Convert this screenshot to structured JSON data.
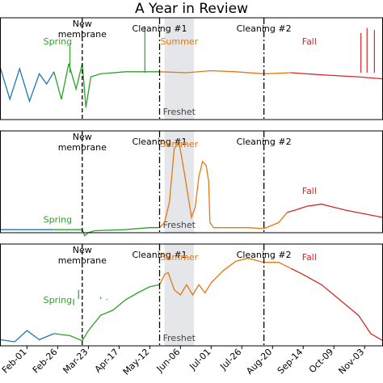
{
  "figure": {
    "title": "A Year in Review",
    "colors": {
      "winter": "#1f77b4",
      "spring": "#2ca02c",
      "summer": "#e6770f",
      "fall": "#d62728",
      "freshet_band": "#e4e6ea",
      "axis": "#000000"
    }
  },
  "chart_data": [
    {
      "type": "line",
      "panel": 1,
      "x_ticks": [
        "Feb-01",
        "Feb-26",
        "Mar-23",
        "Apr-17",
        "May-12",
        "Jun-06",
        "Jul-01",
        "Jul-26",
        "Aug-20",
        "Sep-14",
        "Oct-09",
        "Nov-03"
      ],
      "x_tick_days": [
        0,
        25,
        50,
        75,
        100,
        125,
        150,
        175,
        200,
        225,
        250,
        275
      ],
      "xlim": [
        -22,
        290
      ],
      "ylim": [
        0,
        1
      ],
      "shaded_region": {
        "label": "Freshet",
        "x": [
          112,
          136
        ]
      },
      "events": [
        {
          "label": "New membrane",
          "x": 45
        },
        {
          "label": "Cleaning #1",
          "x": 108
        },
        {
          "label": "Cleaning #2",
          "x": 193
        }
      ],
      "season_labels": [
        {
          "label": "Spring",
          "x": 25,
          "y": 0.74,
          "color": "#2ca02c"
        },
        {
          "label": "Summer",
          "x": 124,
          "y": 0.74,
          "color": "#e6770f"
        },
        {
          "label": "Fall",
          "x": 230,
          "y": 0.74,
          "color": "#d62728"
        }
      ],
      "series": [
        {
          "color": "#1f77b4",
          "points": [
            [
              -22,
              0.52
            ],
            [
              -14,
              0.2
            ],
            [
              -6,
              0.5
            ],
            [
              2,
              0.18
            ],
            [
              10,
              0.45
            ],
            [
              16,
              0.35
            ],
            [
              22,
              0.47
            ]
          ]
        },
        {
          "color": "#2ca02c",
          "points": [
            [
              22,
              0.47
            ],
            [
              28,
              0.2
            ],
            [
              34,
              0.55
            ],
            [
              40,
              0.3
            ],
            [
              45,
              0.55
            ],
            [
              48,
              0.12
            ],
            [
              52,
              0.42
            ],
            [
              60,
              0.45
            ],
            [
              80,
              0.47
            ],
            [
              108,
              0.47
            ]
          ]
        },
        {
          "color": "#e6770f",
          "points": [
            [
              108,
              0.47
            ],
            [
              130,
              0.46
            ],
            [
              150,
              0.48
            ],
            [
              170,
              0.47
            ],
            [
              193,
              0.45
            ],
            [
              215,
              0.46
            ]
          ]
        },
        {
          "color": "#d62728",
          "points": [
            [
              215,
              0.46
            ],
            [
              240,
              0.44
            ],
            [
              270,
              0.42
            ],
            [
              290,
              0.4
            ]
          ]
        }
      ],
      "spikes": [
        {
          "x": 35,
          "y": 0.72,
          "color": "#2ca02c"
        },
        {
          "x": 96,
          "y": 0.92,
          "color": "#2ca02c"
        },
        {
          "x": 272,
          "y": 0.85,
          "color": "#d62728"
        },
        {
          "x": 277,
          "y": 0.9,
          "color": "#d62728"
        },
        {
          "x": 283,
          "y": 0.88,
          "color": "#d62728"
        }
      ]
    },
    {
      "type": "line",
      "panel": 2,
      "xlim": [
        -22,
        290
      ],
      "ylim": [
        0,
        1
      ],
      "shaded_region": {
        "label": "Freshet",
        "x": [
          112,
          136
        ]
      },
      "events": [
        {
          "label": "New membrane",
          "x": 45
        },
        {
          "label": "Cleaning #1",
          "x": 108
        },
        {
          "label": "Cleaning #2",
          "x": 193
        }
      ],
      "season_labels": [
        {
          "label": "Spring",
          "x": 25,
          "y": 0.1,
          "color": "#2ca02c"
        },
        {
          "label": "Summer",
          "x": 124,
          "y": 0.84,
          "color": "#e6770f"
        },
        {
          "label": "Fall",
          "x": 230,
          "y": 0.38,
          "color": "#d62728"
        }
      ],
      "series": [
        {
          "color": "#1f77b4",
          "points": [
            [
              -22,
              0.03
            ],
            [
              22,
              0.03
            ]
          ]
        },
        {
          "color": "#2ca02c",
          "points": [
            [
              22,
              0.03
            ],
            [
              45,
              0.03
            ],
            [
              47,
              -0.03
            ],
            [
              50,
              0.0
            ],
            [
              55,
              0.02
            ],
            [
              80,
              0.03
            ],
            [
              100,
              0.05
            ],
            [
              108,
              0.05
            ]
          ]
        },
        {
          "color": "#e6770f",
          "points": [
            [
              108,
              0.05
            ],
            [
              112,
              0.1
            ],
            [
              116,
              0.3
            ],
            [
              120,
              0.83
            ],
            [
              124,
              0.88
            ],
            [
              128,
              0.6
            ],
            [
              132,
              0.3
            ],
            [
              134,
              0.15
            ],
            [
              137,
              0.25
            ],
            [
              140,
              0.55
            ],
            [
              143,
              0.7
            ],
            [
              146,
              0.66
            ],
            [
              148,
              0.5
            ],
            [
              149,
              0.1
            ],
            [
              152,
              0.05
            ],
            [
              180,
              0.05
            ],
            [
              193,
              0.04
            ],
            [
              205,
              0.1
            ],
            [
              212,
              0.2
            ]
          ]
        },
        {
          "color": "#d62728",
          "points": [
            [
              212,
              0.2
            ],
            [
              218,
              0.22
            ],
            [
              228,
              0.26
            ],
            [
              240,
              0.28
            ],
            [
              260,
              0.22
            ],
            [
              290,
              0.15
            ]
          ]
        }
      ],
      "spikes": []
    },
    {
      "type": "line",
      "panel": 3,
      "xlim": [
        -22,
        290
      ],
      "ylim": [
        0,
        1
      ],
      "shaded_region": {
        "label": "Freshet",
        "x": [
          112,
          136
        ]
      },
      "events": [
        {
          "label": "New membrane",
          "x": 45
        },
        {
          "label": "Cleaning #1",
          "x": 108
        },
        {
          "label": "Cleaning #2",
          "x": 193
        }
      ],
      "season_labels": [
        {
          "label": "Spring",
          "x": 25,
          "y": 0.42,
          "color": "#2ca02c"
        },
        {
          "label": "Summer",
          "x": 124,
          "y": 0.84,
          "color": "#e6770f"
        },
        {
          "label": "Fall",
          "x": 230,
          "y": 0.84,
          "color": "#d62728"
        }
      ],
      "series": [
        {
          "color": "#1f77b4",
          "points": [
            [
              -22,
              0.06
            ],
            [
              -10,
              0.04
            ],
            [
              0,
              0.15
            ],
            [
              10,
              0.06
            ],
            [
              22,
              0.12
            ]
          ]
        },
        {
          "color": "#2ca02c",
          "points": [
            [
              22,
              0.12
            ],
            [
              35,
              0.1
            ],
            [
              45,
              0.05
            ],
            [
              50,
              0.15
            ],
            [
              60,
              0.3
            ],
            [
              70,
              0.35
            ],
            [
              80,
              0.45
            ],
            [
              90,
              0.52
            ],
            [
              100,
              0.58
            ],
            [
              108,
              0.6
            ]
          ]
        },
        {
          "color": "#e6770f",
          "points": [
            [
              108,
              0.6
            ],
            [
              112,
              0.7
            ],
            [
              115,
              0.72
            ],
            [
              120,
              0.55
            ],
            [
              125,
              0.5
            ],
            [
              130,
              0.6
            ],
            [
              135,
              0.5
            ],
            [
              140,
              0.6
            ],
            [
              145,
              0.52
            ],
            [
              150,
              0.62
            ],
            [
              160,
              0.74
            ],
            [
              170,
              0.83
            ],
            [
              180,
              0.86
            ],
            [
              193,
              0.82
            ],
            [
              205,
              0.82
            ],
            [
              215,
              0.76
            ]
          ]
        },
        {
          "color": "#d62728",
          "points": [
            [
              215,
              0.76
            ],
            [
              225,
              0.7
            ],
            [
              240,
              0.6
            ],
            [
              255,
              0.45
            ],
            [
              270,
              0.3
            ],
            [
              280,
              0.12
            ],
            [
              290,
              0.05
            ]
          ]
        }
      ],
      "spikes": [
        {
          "x": 38,
          "y": 0.4,
          "color": "#2ca02c"
        },
        {
          "x": 42,
          "y": 0.55,
          "color": "#2ca02c"
        },
        {
          "x": 60,
          "y": 0.48,
          "color": "#2ca02c"
        },
        {
          "x": 65,
          "y": 0.45,
          "color": "#2ca02c"
        }
      ]
    }
  ]
}
